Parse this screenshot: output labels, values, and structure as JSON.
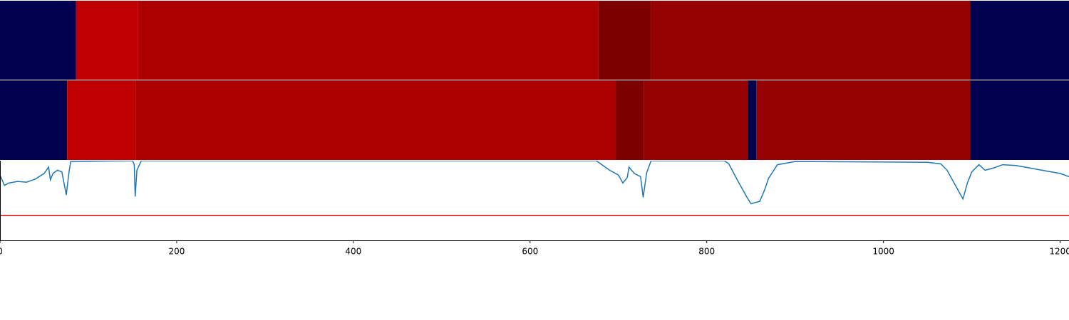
{
  "chart_data": {
    "type": "segments-line",
    "xlim": [
      0,
      1210
    ],
    "xticks": [
      0,
      200,
      400,
      600,
      800,
      1000,
      1200
    ],
    "rows": [
      {
        "segments": [
          {
            "start": 0,
            "end": 86,
            "color": "#00004f"
          },
          {
            "start": 86,
            "end": 156,
            "color": "#c00000"
          },
          {
            "start": 156,
            "end": 677,
            "color": "#aa0000"
          },
          {
            "start": 677,
            "end": 737,
            "color": "#7d0000"
          },
          {
            "start": 737,
            "end": 1098,
            "color": "#950000"
          },
          {
            "start": 1098,
            "end": 1210,
            "color": "#00004f"
          }
        ]
      },
      {
        "segments": [
          {
            "start": 0,
            "end": 76,
            "color": "#00004f"
          },
          {
            "start": 76,
            "end": 154,
            "color": "#c00000"
          },
          {
            "start": 154,
            "end": 697,
            "color": "#aa0000"
          },
          {
            "start": 697,
            "end": 729,
            "color": "#7d0000"
          },
          {
            "start": 729,
            "end": 847,
            "color": "#950000"
          },
          {
            "start": 847,
            "end": 856,
            "color": "#00004f"
          },
          {
            "start": 856,
            "end": 1098,
            "color": "#950000"
          },
          {
            "start": 1098,
            "end": 1210,
            "color": "#00004f"
          }
        ]
      }
    ],
    "line": {
      "color": "#1f77b4",
      "ylim": [
        0,
        1
      ],
      "x": [
        0,
        5,
        10,
        20,
        30,
        40,
        50,
        55,
        57,
        60,
        65,
        70,
        75,
        78,
        80,
        150,
        152,
        153,
        155,
        160,
        675,
        680,
        690,
        700,
        705,
        710,
        712,
        718,
        725,
        728,
        732,
        737,
        820,
        825,
        835,
        845,
        850,
        860,
        865,
        870,
        880,
        900,
        1050,
        1065,
        1072,
        1080,
        1090,
        1095,
        1100,
        1108,
        1115,
        1125,
        1135,
        1150,
        1170,
        1185,
        1200,
        1210
      ],
      "values": [
        0.82,
        0.69,
        0.72,
        0.74,
        0.73,
        0.77,
        0.84,
        0.92,
        0.76,
        0.84,
        0.88,
        0.86,
        0.57,
        0.85,
        0.99,
        1.0,
        0.95,
        0.55,
        0.88,
        1.0,
        1.0,
        0.96,
        0.88,
        0.82,
        0.72,
        0.79,
        0.92,
        0.84,
        0.8,
        0.54,
        0.85,
        1.0,
        1.0,
        0.96,
        0.75,
        0.55,
        0.46,
        0.49,
        0.62,
        0.78,
        0.95,
        0.99,
        0.98,
        0.96,
        0.88,
        0.72,
        0.52,
        0.72,
        0.86,
        0.95,
        0.88,
        0.91,
        0.95,
        0.94,
        0.9,
        0.87,
        0.84,
        0.8
      ]
    },
    "threshold": {
      "value": 0.31,
      "color": "#e00000"
    }
  }
}
